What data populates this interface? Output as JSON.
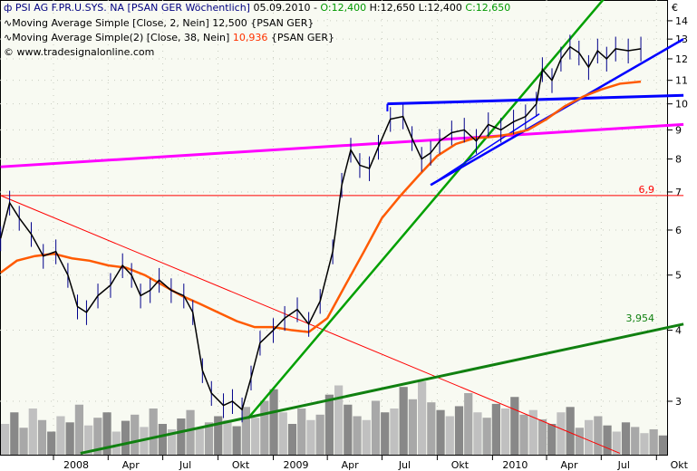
{
  "header": {
    "symbol_icon": "bar-chart-icon",
    "title": "PSI AG F.PR.U.SYS. NA [PSAN GER  Wöchentlich]",
    "date": "05.09.2010 -",
    "open": "O:12,400",
    "high": "H:12,650",
    "low": "L:12,400",
    "close": "C:12,650",
    "ma1_icon": "moving-average-icon",
    "ma1": "Moving Average Simple [Close, 2, Nein] 12,500 {PSAN GER}",
    "ma2_label": "Moving Average Simple(2) [Close, 38, Nein]",
    "ma2_value": "10,936",
    "ma2_suffix": "{PSAN GER}",
    "copyright": "© www.tradesignalonline.com"
  },
  "colors": {
    "price": "#000000",
    "ma38": "#ff5a00",
    "open": "#009900",
    "close": "#009900",
    "title": "#000080",
    "ma2_value": "#ff3300",
    "volume_dark": "#888888",
    "volume_light": "#c0c0c0"
  },
  "chart_data": {
    "type": "line",
    "title": "PSI AG F.PR.U.SYS. NA [PSAN GER  Wöchentlich]",
    "yscale": "log",
    "currency": "€",
    "y_ticks": [
      3,
      4,
      5,
      6,
      7,
      8,
      9,
      10,
      11,
      12,
      13,
      14
    ],
    "ylim": [
      2.43,
      15.2
    ],
    "x_ticks": [
      {
        "date": "2008-01-01",
        "label": "2008"
      },
      {
        "date": "2008-04-01",
        "label": "Apr"
      },
      {
        "date": "2008-07-01",
        "label": "Jul"
      },
      {
        "date": "2008-10-01",
        "label": "Okt"
      },
      {
        "date": "2009-01-01",
        "label": "2009"
      },
      {
        "date": "2009-04-01",
        "label": "Apr"
      },
      {
        "date": "2009-07-01",
        "label": "Jul"
      },
      {
        "date": "2009-10-01",
        "label": "Okt"
      },
      {
        "date": "2010-01-01",
        "label": "2010"
      },
      {
        "date": "2010-04-01",
        "label": "Apr"
      },
      {
        "date": "2010-07-01",
        "label": "Jul"
      },
      {
        "date": "2010-10-01",
        "label": "Okt"
      }
    ],
    "xlim": [
      "2007-10-05",
      "2010-11-15"
    ],
    "price": [
      [
        "2007-10-05",
        5.8
      ],
      [
        "2007-10-20",
        6.7
      ],
      [
        "2007-11-05",
        6.3
      ],
      [
        "2007-11-25",
        5.9
      ],
      [
        "2007-12-15",
        5.4
      ],
      [
        "2008-01-05",
        5.5
      ],
      [
        "2008-01-25",
        5.0
      ],
      [
        "2008-02-10",
        4.4
      ],
      [
        "2008-02-25",
        4.3
      ],
      [
        "2008-03-15",
        4.6
      ],
      [
        "2008-04-05",
        4.8
      ],
      [
        "2008-04-25",
        5.2
      ],
      [
        "2008-05-10",
        5.0
      ],
      [
        "2008-05-25",
        4.6
      ],
      [
        "2008-06-10",
        4.7
      ],
      [
        "2008-06-25",
        4.9
      ],
      [
        "2008-07-15",
        4.7
      ],
      [
        "2008-08-05",
        4.6
      ],
      [
        "2008-08-20",
        4.3
      ],
      [
        "2008-09-05",
        3.4
      ],
      [
        "2008-09-20",
        3.1
      ],
      [
        "2008-10-10",
        2.95
      ],
      [
        "2008-10-25",
        3.0
      ],
      [
        "2008-11-10",
        2.9
      ],
      [
        "2008-11-25",
        3.3
      ],
      [
        "2008-12-10",
        3.8
      ],
      [
        "2009-01-01",
        4.0
      ],
      [
        "2009-01-20",
        4.2
      ],
      [
        "2009-02-10",
        4.35
      ],
      [
        "2009-03-01",
        4.1
      ],
      [
        "2009-03-20",
        4.5
      ],
      [
        "2009-04-10",
        5.5
      ],
      [
        "2009-04-25",
        7.2
      ],
      [
        "2009-05-10",
        8.3
      ],
      [
        "2009-05-25",
        7.8
      ],
      [
        "2009-06-10",
        7.7
      ],
      [
        "2009-06-25",
        8.4
      ],
      [
        "2009-07-15",
        9.4
      ],
      [
        "2009-08-05",
        9.5
      ],
      [
        "2009-08-20",
        8.7
      ],
      [
        "2009-09-05",
        8.0
      ],
      [
        "2009-09-20",
        8.2
      ],
      [
        "2009-10-05",
        8.6
      ],
      [
        "2009-10-25",
        8.9
      ],
      [
        "2009-11-15",
        9.0
      ],
      [
        "2009-12-05",
        8.6
      ],
      [
        "2009-12-25",
        9.2
      ],
      [
        "2010-01-15",
        9.0
      ],
      [
        "2010-02-05",
        9.3
      ],
      [
        "2010-02-25",
        9.5
      ],
      [
        "2010-03-15",
        10.0
      ],
      [
        "2010-03-25",
        11.5
      ],
      [
        "2010-04-10",
        11.0
      ],
      [
        "2010-04-25",
        12.0
      ],
      [
        "2010-05-10",
        12.6
      ],
      [
        "2010-05-25",
        12.3
      ],
      [
        "2010-06-10",
        11.6
      ],
      [
        "2010-06-25",
        12.4
      ],
      [
        "2010-07-10",
        12.0
      ],
      [
        "2010-07-25",
        12.5
      ],
      [
        "2010-08-15",
        12.4
      ],
      [
        "2010-09-05",
        12.5
      ]
    ],
    "ma38": [
      [
        "2007-10-05",
        5.05
      ],
      [
        "2007-11-01",
        5.3
      ],
      [
        "2007-12-01",
        5.4
      ],
      [
        "2008-01-01",
        5.45
      ],
      [
        "2008-02-01",
        5.35
      ],
      [
        "2008-03-01",
        5.3
      ],
      [
        "2008-04-01",
        5.2
      ],
      [
        "2008-05-01",
        5.15
      ],
      [
        "2008-06-01",
        5.0
      ],
      [
        "2008-07-01",
        4.8
      ],
      [
        "2008-08-01",
        4.6
      ],
      [
        "2008-09-01",
        4.45
      ],
      [
        "2008-10-01",
        4.3
      ],
      [
        "2008-11-01",
        4.15
      ],
      [
        "2008-12-01",
        4.05
      ],
      [
        "2009-01-01",
        4.05
      ],
      [
        "2009-02-01",
        4.0
      ],
      [
        "2009-03-01",
        3.97
      ],
      [
        "2009-04-01",
        4.2
      ],
      [
        "2009-05-01",
        4.8
      ],
      [
        "2009-06-01",
        5.5
      ],
      [
        "2009-07-01",
        6.3
      ],
      [
        "2009-08-01",
        6.9
      ],
      [
        "2009-09-01",
        7.5
      ],
      [
        "2009-10-01",
        8.1
      ],
      [
        "2009-11-01",
        8.5
      ],
      [
        "2009-12-01",
        8.7
      ],
      [
        "2010-01-01",
        8.75
      ],
      [
        "2010-02-01",
        8.85
      ],
      [
        "2010-03-01",
        9.0
      ],
      [
        "2010-04-01",
        9.4
      ],
      [
        "2010-05-01",
        9.9
      ],
      [
        "2010-06-01",
        10.3
      ],
      [
        "2010-07-01",
        10.6
      ],
      [
        "2010-08-01",
        10.85
      ],
      [
        "2010-09-05",
        10.94
      ]
    ],
    "volume": [
      40,
      55,
      35,
      60,
      45,
      30,
      50,
      42,
      65,
      38,
      48,
      55,
      30,
      44,
      52,
      36,
      60,
      40,
      33,
      47,
      58,
      35,
      42,
      50,
      45,
      37,
      62,
      48,
      70,
      85,
      55,
      40,
      60,
      45,
      52,
      78,
      90,
      65,
      50,
      45,
      70,
      55,
      60,
      88,
      72,
      95,
      68,
      58,
      50,
      63,
      80,
      55,
      48,
      66,
      60,
      75,
      52,
      58,
      46,
      40,
      55,
      62,
      35,
      45,
      50,
      38,
      30,
      42,
      36,
      28,
      33,
      25
    ],
    "lines": [
      {
        "color": "#ff0000",
        "from": [
          "2007-10-05",
          6.9
        ],
        "to": [
          "2010-11-15",
          6.9
        ],
        "label": "6,9",
        "width": 1
      },
      {
        "color": "#ff0000",
        "from": [
          "2007-10-05",
          6.9
        ],
        "to": [
          "2010-08-01",
          2.43
        ],
        "width": 1
      },
      {
        "color": "#ff00ff",
        "from": [
          "2007-10-05",
          7.75
        ],
        "to": [
          "2010-11-15",
          9.2
        ],
        "width": 3
      },
      {
        "color": "#00a000",
        "from": [
          "2008-11-20",
          2.8
        ],
        "to": [
          "2010-07-10",
          15.5
        ],
        "width": 2.5
      },
      {
        "color": "#108010",
        "from": [
          "2008-02-15",
          2.43
        ],
        "to": [
          "2010-11-15",
          4.1
        ],
        "label": "3,954",
        "width": 3
      },
      {
        "color": "#0000ff",
        "from": [
          "2009-07-10",
          10.0
        ],
        "to": [
          "2010-11-15",
          10.35
        ],
        "width": 3
      },
      {
        "color": "#0000ff",
        "from": [
          "2009-07-10",
          9.7
        ],
        "to": [
          "2009-07-10",
          10.0
        ],
        "width": 2
      },
      {
        "color": "#0000ff",
        "from": [
          "2009-09-20",
          7.2
        ],
        "to": [
          "2010-11-15",
          13.0
        ],
        "width": 2.5
      },
      {
        "color": "#0000ff",
        "from": [
          "2009-09-20",
          7.2
        ],
        "to": [
          "2010-03-20",
          9.6
        ],
        "width": 1.5
      }
    ]
  }
}
